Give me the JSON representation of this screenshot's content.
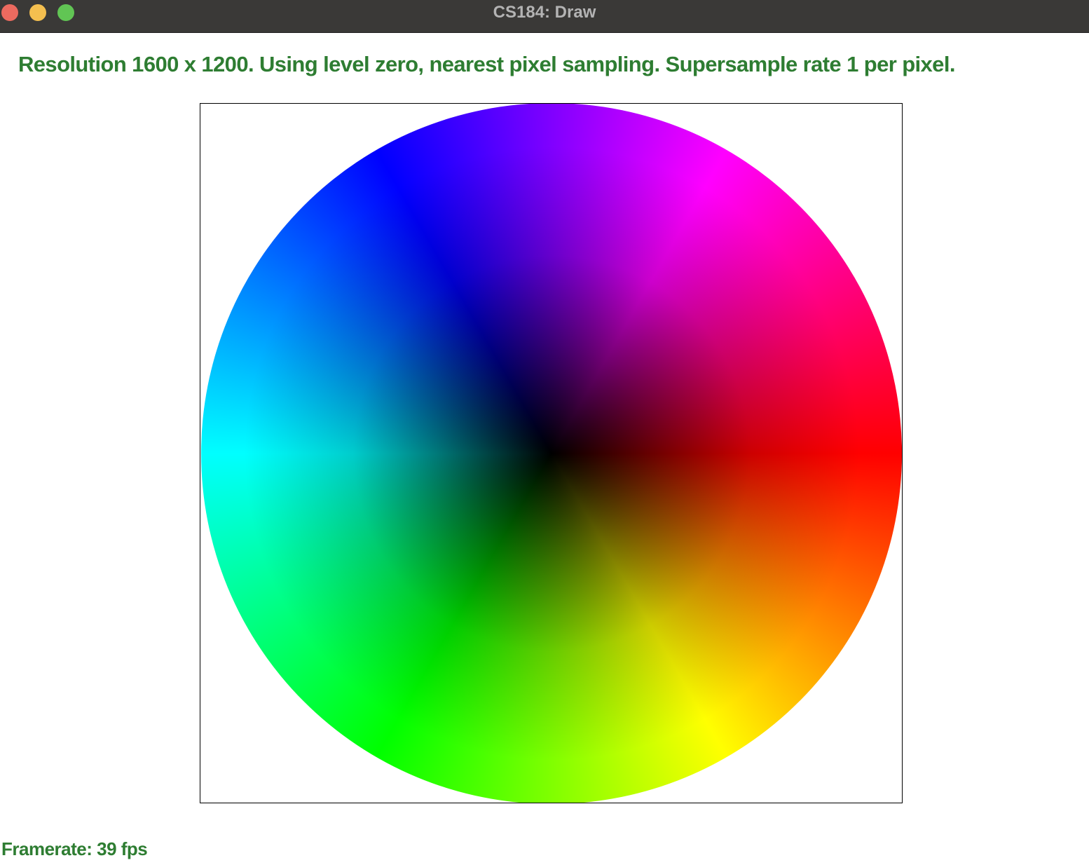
{
  "window": {
    "title": "CS184: Draw",
    "controls": [
      "close",
      "minimize",
      "zoom"
    ]
  },
  "status": {
    "text": "Resolution 1600 x 1200. Using level zero, nearest pixel sampling. Supersample rate 1 per pixel.",
    "color": "#2e7d32"
  },
  "framerate": {
    "text": "Framerate: 39 fps"
  },
  "canvas": {
    "content": "color-wheel",
    "colors": {
      "0deg": "#ff0000",
      "60deg": "#ffff00",
      "120deg": "#00ff00",
      "180deg": "#00ffff",
      "240deg": "#0000ff",
      "300deg": "#ff00ff",
      "center": "#000000"
    }
  }
}
